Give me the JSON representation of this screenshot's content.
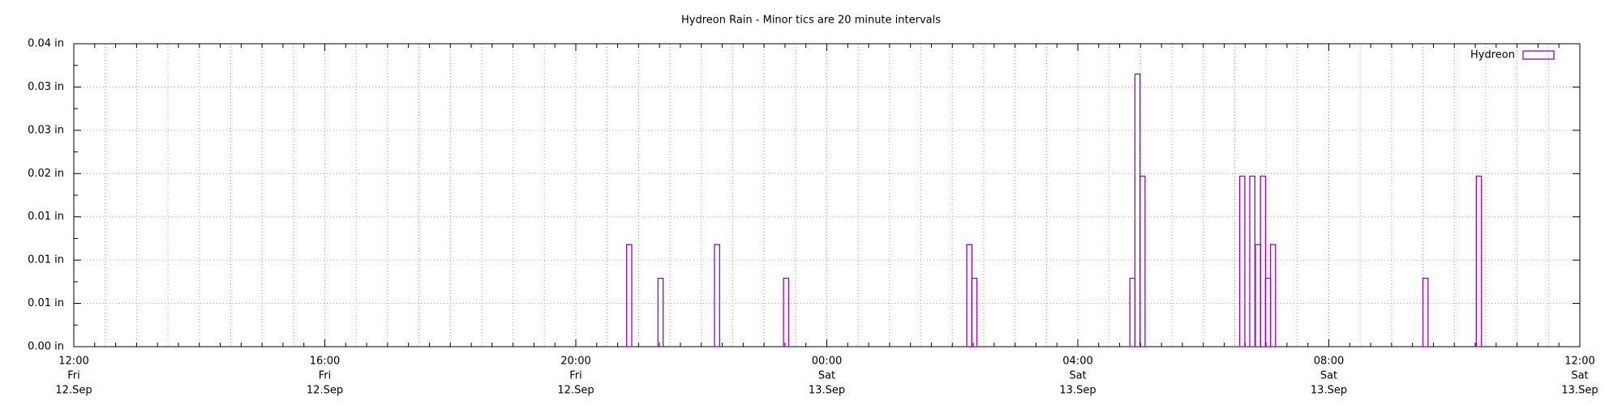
{
  "chart_data": {
    "type": "bar",
    "title": "Hydreon Rain - Minor tics are 20 minute intervals",
    "x": [
      8.81,
      9.31,
      10.21,
      11.31,
      14.23,
      14.31,
      16.83,
      16.91,
      16.99,
      18.58,
      18.74,
      18.83,
      18.91,
      18.99,
      19.07,
      21.5,
      22.35
    ],
    "series": [
      {
        "name": "Hydreon",
        "color": "#9400d3",
        "values": [
          0.0118,
          0.0079,
          0.0118,
          0.0079,
          0.0118,
          0.0079,
          0.0079,
          0.0315,
          0.0197,
          0.0197,
          0.0197,
          0.0118,
          0.0197,
          0.0079,
          0.0118,
          0.0079,
          0.0197
        ]
      }
    ],
    "xlim": [
      0,
      24
    ],
    "xticks": [
      {
        "value": 0,
        "label": [
          "12:00",
          "Fri",
          "12.Sep"
        ]
      },
      {
        "value": 4,
        "label": [
          "16:00",
          "Fri",
          "12.Sep"
        ]
      },
      {
        "value": 8,
        "label": [
          "20:00",
          "Fri",
          "12.Sep"
        ]
      },
      {
        "value": 12,
        "label": [
          "00:00",
          "Sat",
          "13.Sep"
        ]
      },
      {
        "value": 16,
        "label": [
          "04:00",
          "Sat",
          "13.Sep"
        ]
      },
      {
        "value": 20,
        "label": [
          "08:00",
          "Sat",
          "13.Sep"
        ]
      },
      {
        "value": 24,
        "label": [
          "12:00",
          "Sat",
          "13.Sep"
        ]
      }
    ],
    "ylim": [
      0,
      0.035
    ],
    "yticks": [
      {
        "value": 0,
        "label": "0.00 in"
      },
      {
        "value": 0.005,
        "label": "0.01 in"
      },
      {
        "value": 0.01,
        "label": "0.01 in"
      },
      {
        "value": 0.015,
        "label": "0.01 in"
      },
      {
        "value": 0.02,
        "label": "0.02 in"
      },
      {
        "value": 0.025,
        "label": "0.03 in"
      },
      {
        "value": 0.03,
        "label": "0.03 in"
      },
      {
        "value": 0.035,
        "label": "0.04 in"
      }
    ],
    "grid": true,
    "legend": "upper right"
  }
}
